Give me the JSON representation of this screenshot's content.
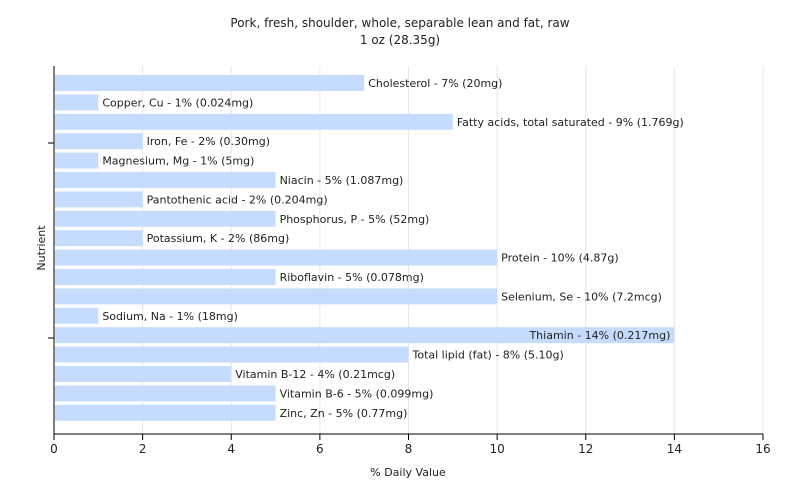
{
  "chart_data": {
    "type": "bar",
    "orientation": "horizontal",
    "title": "Pork, fresh, shoulder, whole, separable lean and fat, raw",
    "subtitle": "1 oz (28.35g)",
    "xlabel": "% Daily Value",
    "ylabel": "Nutrient",
    "xlim": [
      0,
      16
    ],
    "xticks": [
      0,
      2,
      4,
      6,
      8,
      10,
      12,
      14,
      16
    ],
    "grid": true,
    "bar_color": "#c6dcff",
    "categories": [
      "Cholesterol - 7% (20mg)",
      "Copper, Cu - 1% (0.024mg)",
      "Fatty acids, total saturated - 9% (1.769g)",
      "Iron, Fe - 2% (0.30mg)",
      "Magnesium, Mg - 1% (5mg)",
      "Niacin - 5% (1.087mg)",
      "Pantothenic acid - 2% (0.204mg)",
      "Phosphorus, P - 5% (52mg)",
      "Potassium, K - 2% (86mg)",
      "Protein - 10% (4.87g)",
      "Riboflavin - 5% (0.078mg)",
      "Selenium, Se - 10% (7.2mcg)",
      "Sodium, Na - 1% (18mg)",
      "Thiamin - 14% (0.217mg)",
      "Total lipid (fat) - 8% (5.10g)",
      "Vitamin B-12 - 4% (0.21mcg)",
      "Vitamin B-6 - 5% (0.099mg)",
      "Zinc, Zn - 5% (0.77mg)"
    ],
    "values": [
      7,
      1,
      9,
      2,
      1,
      5,
      2,
      5,
      2,
      10,
      5,
      10,
      1,
      14,
      8,
      4,
      5,
      5
    ]
  }
}
